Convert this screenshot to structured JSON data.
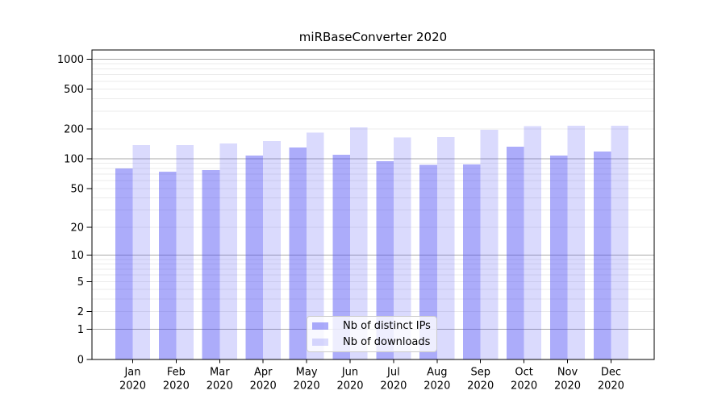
{
  "chart_data": {
    "type": "bar",
    "title": "miRBaseConverter 2020",
    "categories": [
      "Jan",
      "Feb",
      "Mar",
      "Apr",
      "May",
      "Jun",
      "Jul",
      "Aug",
      "Sep",
      "Oct",
      "Nov",
      "Dec"
    ],
    "x_year_label": "2020",
    "series": [
      {
        "name": "Nb of distinct IPs",
        "color": "#4646f5",
        "fill_opacity": 0.45,
        "values": [
          80,
          74,
          77,
          108,
          130,
          110,
          95,
          87,
          88,
          132,
          108,
          118
        ]
      },
      {
        "name": "Nb of downloads",
        "color": "#4646f5",
        "fill_opacity": 0.2,
        "values": [
          137,
          137,
          143,
          151,
          184,
          208,
          164,
          165,
          196,
          214,
          216,
          215
        ]
      }
    ],
    "y_axis": {
      "scale": "log1p",
      "tick_labels": [
        0,
        1,
        2,
        5,
        10,
        20,
        50,
        100,
        200,
        500,
        1000
      ],
      "ylim": [
        0,
        1236
      ]
    },
    "grid": {
      "minor_color": "#ebebeb",
      "major_color": "#aaaaaa",
      "major_at": [
        1,
        10,
        100,
        1000
      ]
    },
    "legend_position": "lower center"
  }
}
